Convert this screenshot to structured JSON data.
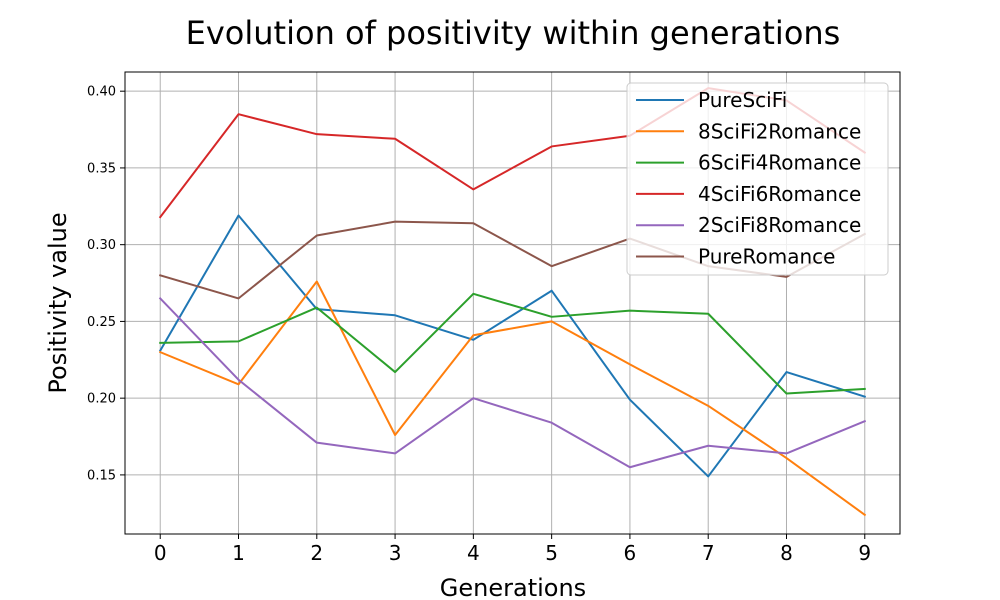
{
  "chart_data": {
    "type": "line",
    "title": "Evolution of positivity within generations",
    "xlabel": "Generations",
    "ylabel": "Positivity value",
    "x": [
      0,
      1,
      2,
      3,
      4,
      5,
      6,
      7,
      8,
      9
    ],
    "x_ticks": [
      "0",
      "1",
      "2",
      "3",
      "4",
      "5",
      "6",
      "7",
      "8",
      "9"
    ],
    "y_ticks": [
      "0.15",
      "0.20",
      "0.25",
      "0.30",
      "0.35",
      "0.40"
    ],
    "xlim": [
      -0.45,
      9.45
    ],
    "ylim": [
      0.1115,
      0.4125
    ],
    "grid": true,
    "legend_position": "top-right",
    "series": [
      {
        "name": "PureSciFi",
        "color": "#1f77b4",
        "values": [
          0.231,
          0.319,
          0.258,
          0.254,
          0.238,
          0.27,
          0.199,
          0.149,
          0.217,
          0.201
        ]
      },
      {
        "name": "8SciFi2Romance",
        "color": "#ff7f0e",
        "values": [
          0.23,
          0.209,
          0.276,
          0.176,
          0.241,
          0.25,
          0.222,
          0.195,
          0.161,
          0.124
        ]
      },
      {
        "name": "6SciFi4Romance",
        "color": "#2ca02c",
        "values": [
          0.236,
          0.237,
          0.259,
          0.217,
          0.268,
          0.253,
          0.257,
          0.255,
          0.203,
          0.206
        ]
      },
      {
        "name": "4SciFi6Romance",
        "color": "#d62728",
        "values": [
          0.318,
          0.385,
          0.372,
          0.369,
          0.336,
          0.364,
          0.371,
          0.402,
          0.394,
          0.36
        ]
      },
      {
        "name": "2SciFi8Romance",
        "color": "#9467bd",
        "values": [
          0.265,
          0.212,
          0.171,
          0.164,
          0.2,
          0.184,
          0.155,
          0.169,
          0.164,
          0.185
        ]
      },
      {
        "name": "PureRomance",
        "color": "#8c564b",
        "values": [
          0.28,
          0.265,
          0.306,
          0.315,
          0.314,
          0.286,
          0.304,
          0.286,
          0.279,
          0.307
        ]
      }
    ]
  }
}
